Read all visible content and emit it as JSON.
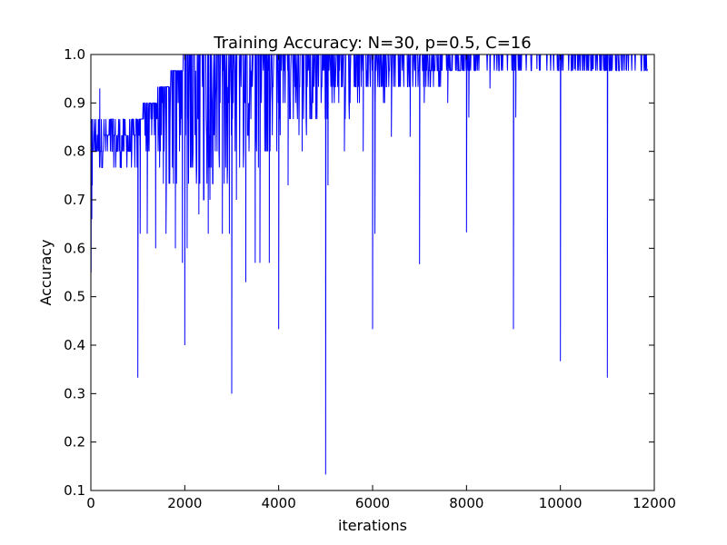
{
  "chart_data": {
    "type": "line",
    "title": "Training Accuracy: N=30, p=0.5, C=16",
    "xlabel": "iterations",
    "ylabel": "Accuracy",
    "xlim": [
      0,
      12000
    ],
    "ylim": [
      0.1,
      1.0
    ],
    "xticks": [
      0,
      2000,
      4000,
      6000,
      8000,
      10000,
      12000
    ],
    "yticks": [
      0.1,
      0.2,
      0.3,
      0.4,
      0.5,
      0.6,
      0.7,
      0.8,
      0.9,
      1.0
    ],
    "xtick_labels": [
      "0",
      "2000",
      "4000",
      "6000",
      "8000",
      "10000",
      "12000"
    ],
    "ytick_labels": [
      "0.1",
      "0.2",
      "0.3",
      "0.4",
      "0.5",
      "0.6",
      "0.7",
      "0.8",
      "0.9",
      "1.0"
    ],
    "grid": false,
    "series": [
      {
        "color": "#0000ff",
        "x_start": 0,
        "x_end": 11850,
        "band_lower": [
          [
            0,
            0.77
          ],
          [
            1000,
            0.77
          ],
          [
            1500,
            0.73
          ],
          [
            2000,
            0.7
          ],
          [
            2500,
            0.7
          ],
          [
            3000,
            0.73
          ],
          [
            3500,
            0.77
          ],
          [
            4000,
            0.8
          ],
          [
            4500,
            0.83
          ],
          [
            5000,
            0.87
          ],
          [
            5500,
            0.87
          ],
          [
            6000,
            0.9
          ],
          [
            6500,
            0.93
          ],
          [
            7000,
            0.93
          ],
          [
            7500,
            0.93
          ],
          [
            8000,
            0.97
          ],
          [
            8500,
            0.97
          ],
          [
            9000,
            0.97
          ],
          [
            10000,
            0.97
          ],
          [
            11000,
            0.97
          ],
          [
            11850,
            0.97
          ]
        ],
        "band_upper": [
          [
            0,
            0.87
          ],
          [
            1000,
            0.87
          ],
          [
            1500,
            0.93
          ],
          [
            1900,
            0.97
          ],
          [
            2000,
            1.0
          ],
          [
            11850,
            1.0
          ]
        ],
        "spikes": [
          [
            5,
            0.55
          ],
          [
            20,
            0.66
          ],
          [
            30,
            0.73
          ],
          [
            190,
            0.93
          ],
          [
            1000,
            0.333
          ],
          [
            1050,
            0.63
          ],
          [
            1200,
            0.63
          ],
          [
            1380,
            0.6
          ],
          [
            1600,
            0.63
          ],
          [
            1800,
            0.6
          ],
          [
            1950,
            0.57
          ],
          [
            2000,
            0.4
          ],
          [
            2050,
            0.6
          ],
          [
            2300,
            0.67
          ],
          [
            2500,
            0.63
          ],
          [
            2800,
            0.63
          ],
          [
            2950,
            0.63
          ],
          [
            3000,
            0.3
          ],
          [
            3100,
            0.7
          ],
          [
            3300,
            0.53
          ],
          [
            3500,
            0.57
          ],
          [
            3600,
            0.57
          ],
          [
            3800,
            0.57
          ],
          [
            4000,
            0.433
          ],
          [
            4200,
            0.73
          ],
          [
            4500,
            0.8
          ],
          [
            5000,
            0.133
          ],
          [
            5050,
            0.73
          ],
          [
            5400,
            0.8
          ],
          [
            5800,
            0.8
          ],
          [
            6000,
            0.433
          ],
          [
            6050,
            0.63
          ],
          [
            6400,
            0.83
          ],
          [
            6800,
            0.83
          ],
          [
            7000,
            0.567
          ],
          [
            7100,
            0.9
          ],
          [
            7600,
            0.9
          ],
          [
            8000,
            0.633
          ],
          [
            8050,
            0.87
          ],
          [
            8500,
            0.93
          ],
          [
            9000,
            0.433
          ],
          [
            9050,
            0.87
          ],
          [
            9500,
            0.97
          ],
          [
            10000,
            0.367
          ],
          [
            10300,
            0.97
          ],
          [
            10700,
            0.97
          ],
          [
            11000,
            0.333
          ],
          [
            11050,
            0.97
          ],
          [
            11400,
            0.97
          ],
          [
            11850,
            0.97
          ]
        ]
      }
    ]
  }
}
